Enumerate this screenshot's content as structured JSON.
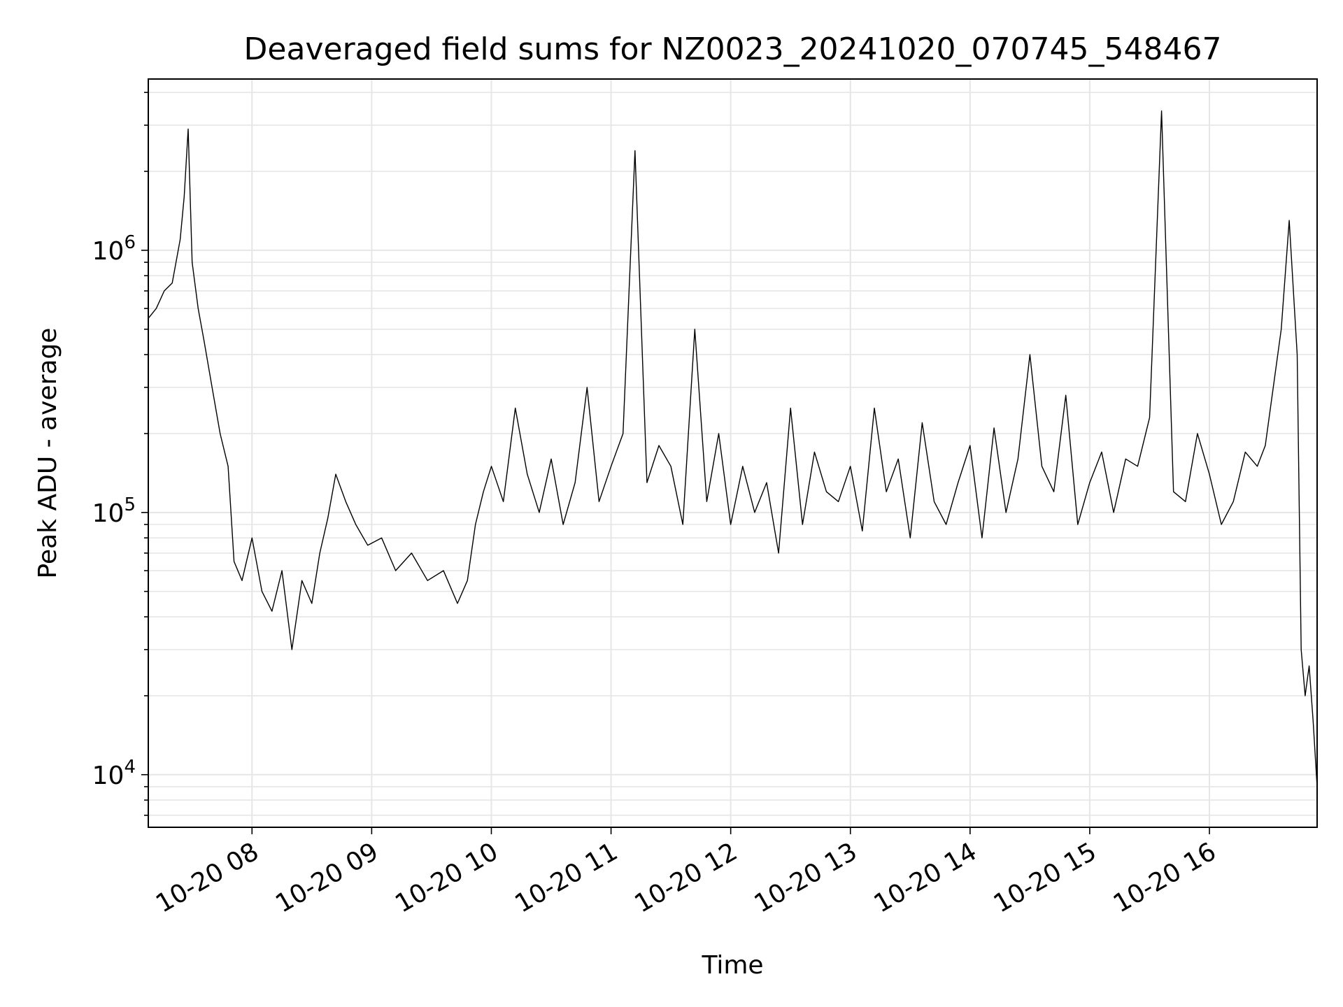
{
  "chart_data": {
    "type": "line",
    "title": "Deaveraged field sums for NZ0023_20241020_070745_548467",
    "xlabel": "Time",
    "ylabel": "Peak ADU - average",
    "y_scale": "log",
    "grid": true,
    "line_color": "#000000",
    "grid_color": "#e6e6e6",
    "xlim": [
      "10-20 07:08",
      "10-20 16:54"
    ],
    "ylim": [
      6300,
      4500000
    ],
    "x_ticks": [
      "10-20 08",
      "10-20 09",
      "10-20 10",
      "10-20 11",
      "10-20 12",
      "10-20 13",
      "10-20 14",
      "10-20 15",
      "10-20 16"
    ],
    "y_ticks": [
      {
        "base": "10",
        "exp": "4"
      },
      {
        "base": "10",
        "exp": "5"
      },
      {
        "base": "10",
        "exp": "6"
      }
    ],
    "series": [
      {
        "x": [
          "10-20 07:08",
          "10-20 07:12",
          "10-20 07:16",
          "10-20 07:20",
          "10-20 07:24",
          "10-20 07:26",
          "10-20 07:28",
          "10-20 07:30",
          "10-20 07:33",
          "10-20 07:36",
          "10-20 07:40",
          "10-20 07:44",
          "10-20 07:48",
          "10-20 07:51",
          "10-20 07:55",
          "10-20 08:00",
          "10-20 08:05",
          "10-20 08:10",
          "10-20 08:15",
          "10-20 08:20",
          "10-20 08:25",
          "10-20 08:30",
          "10-20 08:34",
          "10-20 08:38",
          "10-20 08:42",
          "10-20 08:47",
          "10-20 08:52",
          "10-20 08:58",
          "10-20 09:05",
          "10-20 09:12",
          "10-20 09:20",
          "10-20 09:28",
          "10-20 09:36",
          "10-20 09:43",
          "10-20 09:48",
          "10-20 09:52",
          "10-20 09:56",
          "10-20 10:00",
          "10-20 10:06",
          "10-20 10:12",
          "10-20 10:18",
          "10-20 10:24",
          "10-20 10:30",
          "10-20 10:36",
          "10-20 10:42",
          "10-20 10:48",
          "10-20 10:54",
          "10-20 11:00",
          "10-20 11:06",
          "10-20 11:12",
          "10-20 11:18",
          "10-20 11:24",
          "10-20 11:30",
          "10-20 11:36",
          "10-20 11:42",
          "10-20 11:48",
          "10-20 11:54",
          "10-20 12:00",
          "10-20 12:06",
          "10-20 12:12",
          "10-20 12:18",
          "10-20 12:24",
          "10-20 12:30",
          "10-20 12:36",
          "10-20 12:42",
          "10-20 12:48",
          "10-20 12:54",
          "10-20 13:00",
          "10-20 13:06",
          "10-20 13:12",
          "10-20 13:18",
          "10-20 13:24",
          "10-20 13:30",
          "10-20 13:36",
          "10-20 13:42",
          "10-20 13:48",
          "10-20 13:54",
          "10-20 14:00",
          "10-20 14:06",
          "10-20 14:12",
          "10-20 14:18",
          "10-20 14:24",
          "10-20 14:30",
          "10-20 14:36",
          "10-20 14:42",
          "10-20 14:48",
          "10-20 14:54",
          "10-20 15:00",
          "10-20 15:06",
          "10-20 15:12",
          "10-20 15:18",
          "10-20 15:24",
          "10-20 15:30",
          "10-20 15:36",
          "10-20 15:42",
          "10-20 15:48",
          "10-20 15:54",
          "10-20 16:00",
          "10-20 16:06",
          "10-20 16:12",
          "10-20 16:18",
          "10-20 16:24",
          "10-20 16:28",
          "10-20 16:32",
          "10-20 16:36",
          "10-20 16:40",
          "10-20 16:44",
          "10-20 16:46",
          "10-20 16:48",
          "10-20 16:50",
          "10-20 16:52",
          "10-20 16:54"
        ],
        "y": [
          550000,
          600000,
          700000,
          750000,
          1100000,
          1600000,
          2900000,
          900000,
          600000,
          450000,
          300000,
          200000,
          150000,
          65000,
          55000,
          80000,
          50000,
          42000,
          60000,
          30000,
          55000,
          45000,
          70000,
          95000,
          140000,
          110000,
          90000,
          75000,
          80000,
          60000,
          70000,
          55000,
          60000,
          45000,
          55000,
          90000,
          120000,
          150000,
          110000,
          250000,
          140000,
          100000,
          160000,
          90000,
          130000,
          300000,
          110000,
          150000,
          200000,
          2400000,
          130000,
          180000,
          150000,
          90000,
          500000,
          110000,
          200000,
          90000,
          150000,
          100000,
          130000,
          70000,
          250000,
          90000,
          170000,
          120000,
          110000,
          150000,
          85000,
          250000,
          120000,
          160000,
          80000,
          220000,
          110000,
          90000,
          130000,
          180000,
          80000,
          210000,
          100000,
          160000,
          400000,
          150000,
          120000,
          280000,
          90000,
          130000,
          170000,
          100000,
          160000,
          150000,
          230000,
          3400000,
          120000,
          110000,
          200000,
          140000,
          90000,
          110000,
          170000,
          150000,
          180000,
          300000,
          500000,
          1300000,
          400000,
          30000,
          20000,
          26000,
          16000,
          9000
        ]
      }
    ]
  }
}
